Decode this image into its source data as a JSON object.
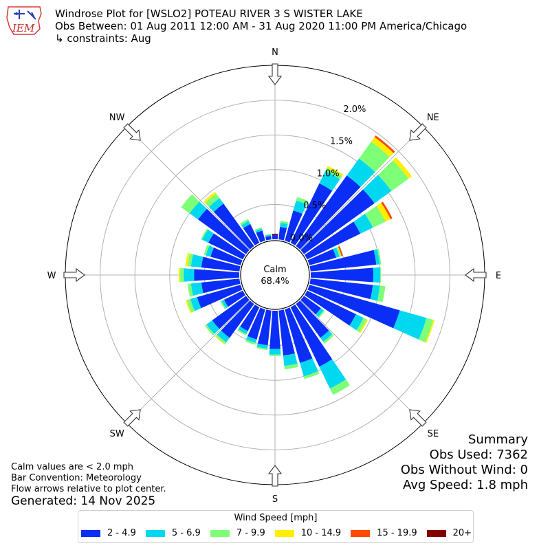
{
  "header": {
    "logo_text": "IEM",
    "title_line1": "Windrose Plot for [WSLO2] POTEAU RIVER 3 S WISTER LAKE",
    "title_line2": "Obs Between: 01 Aug 2011 12:00 AM - 31 Aug 2020 11:00 PM America/Chicago",
    "title_line3": "↳ constraints: Aug"
  },
  "calm": {
    "label": "Calm",
    "value": "68.4%"
  },
  "summary": {
    "title": "Summary",
    "obs_used": "Obs Used: 7362",
    "obs_without_wind": "Obs Without Wind: 0",
    "avg_speed": "Avg Speed: 1.8 mph"
  },
  "notes": {
    "line1": "Calm values are < 2.0 mph",
    "line2": "Bar Convention: Meteorology",
    "line3": "Flow arrows relative to plot center."
  },
  "generated": "Generated: 14 Nov 2025",
  "legend": {
    "title": "Wind Speed [mph]",
    "items": [
      {
        "label": "2 - 4.9",
        "color": "#0a2ef5"
      },
      {
        "label": "5 - 6.9",
        "color": "#00d8f0"
      },
      {
        "label": "7 - 9.9",
        "color": "#7dff78"
      },
      {
        "label": "10 - 14.9",
        "color": "#ffee00"
      },
      {
        "label": "15 - 19.9",
        "color": "#ff4a00"
      },
      {
        "label": "20+",
        "color": "#800000"
      }
    ]
  },
  "chart_data": {
    "type": "windrose",
    "radial_ticks": [
      "0.0%",
      "0.5%",
      "1.0%",
      "1.5%",
      "2.0%"
    ],
    "radial_tick_values": [
      0,
      0.5,
      1.0,
      1.5,
      2.0
    ],
    "rmax": 2.5,
    "compass_labels": [
      "N",
      "NE",
      "E",
      "SE",
      "S",
      "SW",
      "W",
      "NW"
    ],
    "directions_deg": [
      0,
      10,
      20,
      30,
      40,
      50,
      60,
      70,
      80,
      90,
      100,
      110,
      120,
      130,
      140,
      150,
      160,
      170,
      180,
      190,
      200,
      210,
      220,
      230,
      240,
      250,
      260,
      270,
      280,
      290,
      300,
      310,
      320,
      330,
      340,
      350
    ],
    "bins": [
      "2 - 4.9",
      "5 - 6.9",
      "7 - 9.9",
      "10 - 14.9",
      "15 - 19.9",
      "20+"
    ],
    "values": [
      [
        0.06,
        0,
        0,
        0,
        0,
        0.02
      ],
      [
        0.18,
        0.06,
        0.03,
        0,
        0,
        0
      ],
      [
        0.45,
        0.15,
        0.05,
        0,
        0,
        0
      ],
      [
        0.95,
        0.2,
        0.05,
        0.03,
        0,
        0
      ],
      [
        1.25,
        0.3,
        0.3,
        0.08,
        0.03,
        0
      ],
      [
        1.25,
        0.3,
        0.3,
        0.06,
        0,
        0
      ],
      [
        0.85,
        0.2,
        0.2,
        0.08,
        0.03,
        0
      ],
      [
        0.4,
        0.05,
        0.02,
        0.01,
        0.02,
        0
      ],
      [
        0.95,
        0.05,
        0.02,
        0,
        0,
        0
      ],
      [
        0.9,
        0.1,
        0.01,
        0,
        0,
        0
      ],
      [
        0.9,
        0.1,
        0.08,
        0,
        0,
        0
      ],
      [
        1.35,
        0.4,
        0.1,
        0.02,
        0,
        0
      ],
      [
        0.78,
        0.12,
        0.05,
        0.02,
        0,
        0
      ],
      [
        0.3,
        0.05,
        0.02,
        0,
        0,
        0
      ],
      [
        0.6,
        0.07,
        0.03,
        0,
        0,
        0
      ],
      [
        0.95,
        0.35,
        0.1,
        0,
        0,
        0
      ],
      [
        0.8,
        0.2,
        0.04,
        0,
        0,
        0
      ],
      [
        0.65,
        0.15,
        0.05,
        0,
        0,
        0
      ],
      [
        0.55,
        0.08,
        0.02,
        0,
        0,
        0
      ],
      [
        0.5,
        0.05,
        0.02,
        0,
        0,
        0
      ],
      [
        0.45,
        0.05,
        0.03,
        0,
        0,
        0
      ],
      [
        0.38,
        0.05,
        0.02,
        0,
        0,
        0
      ],
      [
        0.6,
        0.08,
        0.03,
        0.01,
        0,
        0
      ],
      [
        0.6,
        0.1,
        0.03,
        0,
        0,
        0
      ],
      [
        0.3,
        0.04,
        0.02,
        0,
        0,
        0
      ],
      [
        0.65,
        0.1,
        0.05,
        0.02,
        0,
        0
      ],
      [
        0.55,
        0.15,
        0.05,
        0,
        0,
        0
      ],
      [
        0.65,
        0.15,
        0.05,
        0.02,
        0,
        0
      ],
      [
        0.55,
        0.15,
        0.05,
        0.03,
        0,
        0
      ],
      [
        0.45,
        0.07,
        0.03,
        0,
        0,
        0
      ],
      [
        0.55,
        0.1,
        0.02,
        0,
        0,
        0
      ],
      [
        0.85,
        0.15,
        0.15,
        0,
        0,
        0
      ],
      [
        0.75,
        0.1,
        0.08,
        0.03,
        0,
        0
      ],
      [
        0.3,
        0.05,
        0.03,
        0,
        0,
        0
      ],
      [
        0.15,
        0.03,
        0.02,
        0,
        0,
        0
      ],
      [
        0.05,
        0.02,
        0.01,
        0,
        0,
        0
      ]
    ]
  }
}
